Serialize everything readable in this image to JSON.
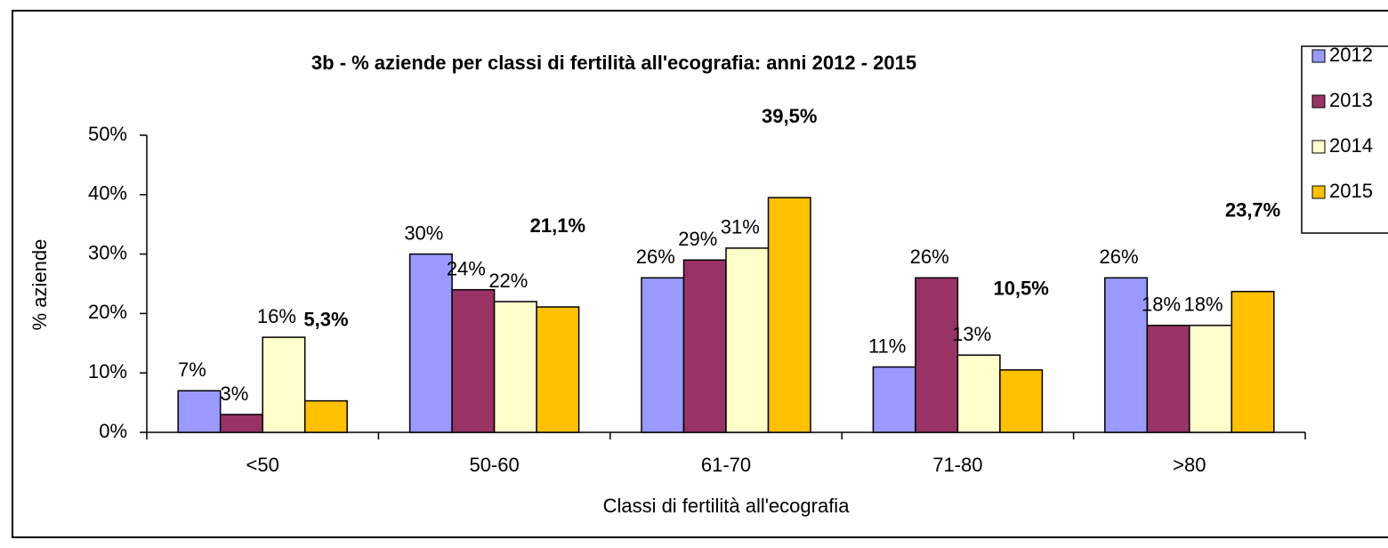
{
  "chart_data": {
    "type": "bar",
    "title": "3b -  % aziende per classi di fertilità all'ecografia: anni 2012 - 2015",
    "x_label": "Classi di fertilità all'ecografia",
    "y_label": "% aziende",
    "categories": [
      "<50",
      "50-60",
      "61-70",
      "71-80",
      ">80"
    ],
    "series": [
      {
        "name": "2012",
        "color": "#9999ff",
        "values": [
          7,
          30,
          26,
          11,
          26
        ],
        "value_labels": [
          "7%",
          "30%",
          "26%",
          "11%",
          "26%"
        ]
      },
      {
        "name": "2013",
        "color": "#993366",
        "values": [
          3,
          24,
          29,
          26,
          18
        ],
        "value_labels": [
          "3%",
          "24%",
          "29%",
          "26%",
          "18%"
        ]
      },
      {
        "name": "2014",
        "color": "#ffffcc",
        "values": [
          16,
          22,
          31,
          13,
          18
        ],
        "value_labels": [
          "16%",
          "22%",
          "31%",
          "13%",
          "18%"
        ]
      },
      {
        "name": "2015",
        "color": "#ffc000",
        "values": [
          5.3,
          21.1,
          39.5,
          10.5,
          23.7
        ],
        "value_labels": [
          "5,3%",
          "21,1%",
          "39,5%",
          "10,5%",
          "23,7%"
        ]
      }
    ],
    "ylim": [
      0,
      50
    ],
    "yticks": [
      {
        "value": 0,
        "label": "0%"
      },
      {
        "value": 10,
        "label": "10%"
      },
      {
        "value": 20,
        "label": "20%"
      },
      {
        "value": 30,
        "label": "30%"
      },
      {
        "value": 40,
        "label": "40%"
      },
      {
        "value": 50,
        "label": "50%"
      }
    ],
    "legend": "right"
  }
}
